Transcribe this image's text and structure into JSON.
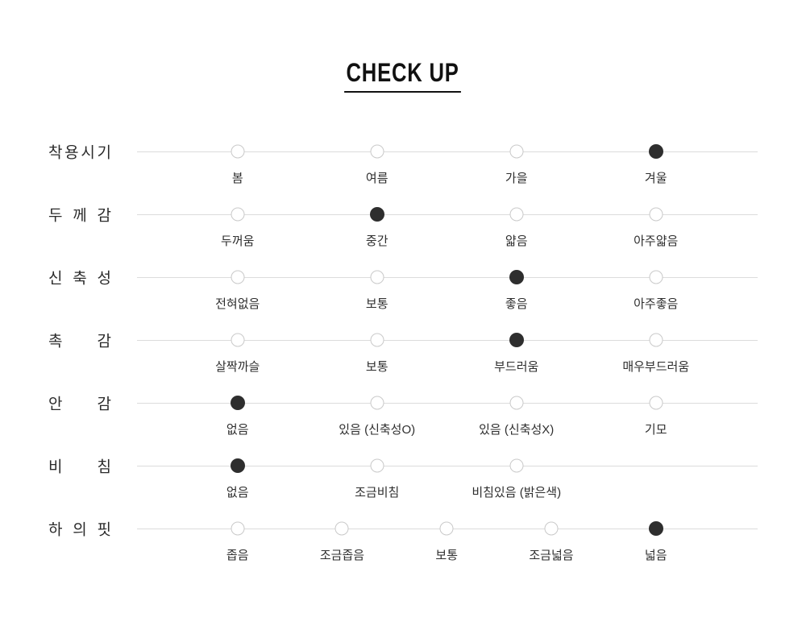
{
  "title": "CHECK UP",
  "colors": {
    "selected_dot": "#2e2e2e",
    "empty_dot_border": "#c9c9c9",
    "line": "#dcdcdc",
    "label_text": "#2b2b2b",
    "underline": "#111111"
  },
  "chart_data": {
    "type": "table",
    "title": "CHECK UP",
    "description": "Product attribute check-up scales, one selected value per attribute row",
    "rows": [
      {
        "attribute": "착용시기",
        "options": [
          "봄",
          "여름",
          "가을",
          "겨울"
        ],
        "selected": "겨울",
        "selected_index": 3,
        "slots": 4
      },
      {
        "attribute": "두께감",
        "options": [
          "두꺼움",
          "중간",
          "얇음",
          "아주얇음"
        ],
        "selected": "중간",
        "selected_index": 1,
        "slots": 4
      },
      {
        "attribute": "신축성",
        "options": [
          "전혀없음",
          "보통",
          "좋음",
          "아주좋음"
        ],
        "selected": "좋음",
        "selected_index": 2,
        "slots": 4
      },
      {
        "attribute": "촉감",
        "options": [
          "살짝까슬",
          "보통",
          "부드러움",
          "매우부드러움"
        ],
        "selected": "부드러움",
        "selected_index": 2,
        "slots": 4
      },
      {
        "attribute": "안감",
        "options": [
          "없음",
          "있음 (신축성O)",
          "있음 (신축성X)",
          "기모"
        ],
        "selected": "없음",
        "selected_index": 0,
        "slots": 4
      },
      {
        "attribute": "비침",
        "options": [
          "없음",
          "조금비침",
          "비침있음 (밝은색)"
        ],
        "selected": "없음",
        "selected_index": 0,
        "slots": 4
      },
      {
        "attribute": "하의핏",
        "options": [
          "좁음",
          "조금좁음",
          "보통",
          "조금넓음",
          "넓음"
        ],
        "selected": "넓음",
        "selected_index": 4,
        "slots": 5
      }
    ]
  }
}
